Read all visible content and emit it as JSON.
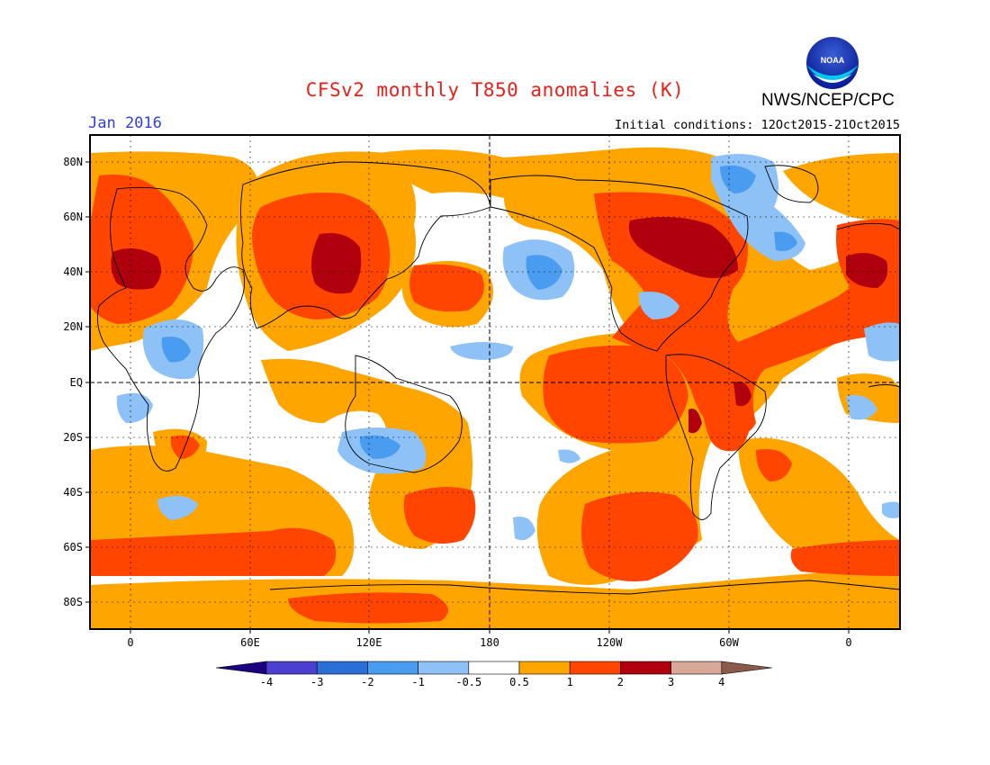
{
  "header": {
    "title": "CFSv2 monthly T850 anomalies (K)",
    "agency": "NWS/NCEP/CPC",
    "month": "Jan 2016",
    "initial_conditions": "Initial conditions: 12Oct2015-21Oct2015",
    "logo_text": "NOAA"
  },
  "axes": {
    "lat_labels": [
      "80N",
      "60N",
      "40N",
      "20N",
      "EQ",
      "20S",
      "40S",
      "60S",
      "80S"
    ],
    "lon_labels": [
      "0",
      "60E",
      "120E",
      "180",
      "120W",
      "60W",
      "0"
    ]
  },
  "colorbar": {
    "labels": [
      "-4",
      "-3",
      "-2",
      "-1",
      "-0.5",
      "0.5",
      "1",
      "2",
      "3",
      "4"
    ],
    "colors": [
      "#1a0080",
      "#4a3fcf",
      "#2a6fd6",
      "#4a9cf0",
      "#8ec2f7",
      "#ffffff",
      "#ffa500",
      "#ff4500",
      "#b0000e",
      "#d8a898",
      "#8a5a4a"
    ]
  },
  "colors": {
    "land_outline": "#000000",
    "title": "#e8201a",
    "month": "#2f3fe0"
  }
}
